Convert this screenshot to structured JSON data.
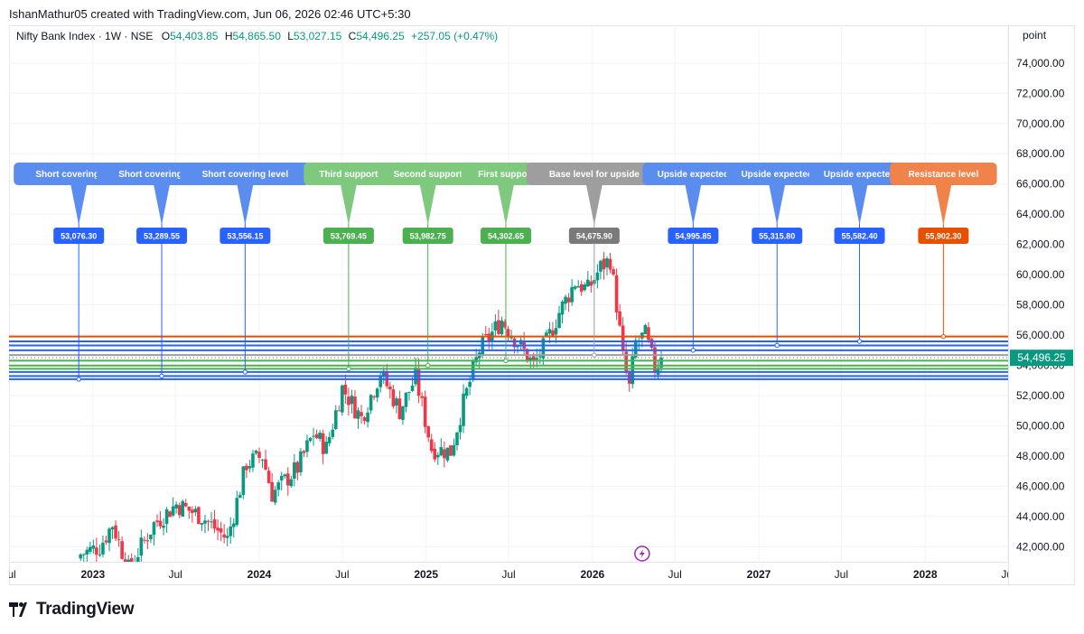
{
  "header": {
    "created_by": "IshanMathur05 created with TradingView.com, Jun 06, 2026 02:46 UTC+5:30"
  },
  "symbol": {
    "title": "Nifty Bank Index · 1W · NSE",
    "o_label": "O",
    "o_value": "54,403.85",
    "h_label": "H",
    "h_value": "54,865.50",
    "l_label": "L",
    "l_value": "53,027.15",
    "c_label": "C",
    "c_value": "54,496.25",
    "change": "+257.05 (+0.47%)"
  },
  "scale_button": "point",
  "last_price_label": "54,496.25",
  "footer": {
    "logo_text": "TradingView"
  },
  "colors": {
    "up": "#089981",
    "down": "#f23645",
    "blue": "#2962ff",
    "green": "#4caf50",
    "green_label": "#7fc97f",
    "gray": "#9e9e9e",
    "orange": "#e65100",
    "orange_label": "#f0834a",
    "blue_label": "#5b8def",
    "grid": "#f0f3fa"
  },
  "icons": {
    "replay": "lightning-icon",
    "logo": "tradingview-logo-icon"
  },
  "chart_data": {
    "type": "candlestick",
    "y_range": [
      41000,
      76500
    ],
    "y_ticks": [
      "42,000.00",
      "44,000.00",
      "46,000.00",
      "48,000.00",
      "50,000.00",
      "52,000.00",
      "54,000.00",
      "56,000.00",
      "58,000.00",
      "60,000.00",
      "62,000.00",
      "64,000.00",
      "66,000.00",
      "68,000.00",
      "70,000.00",
      "72,000.00",
      "74,000.00"
    ],
    "y_tick_values": [
      42000,
      44000,
      46000,
      48000,
      50000,
      52000,
      54000,
      56000,
      58000,
      60000,
      62000,
      64000,
      66000,
      68000,
      70000,
      72000,
      74000
    ],
    "x_range": [
      "2022-07-01",
      "2028-07-01"
    ],
    "x_ticks": [
      {
        "date": "2022-07-01",
        "label": "Jul",
        "bold": false
      },
      {
        "date": "2023-01-01",
        "label": "2023",
        "bold": true
      },
      {
        "date": "2023-07-01",
        "label": "Jul",
        "bold": false
      },
      {
        "date": "2024-01-01",
        "label": "2024",
        "bold": true
      },
      {
        "date": "2024-07-01",
        "label": "Jul",
        "bold": false
      },
      {
        "date": "2025-01-01",
        "label": "2025",
        "bold": true
      },
      {
        "date": "2025-07-01",
        "label": "Jul",
        "bold": false
      },
      {
        "date": "2026-01-01",
        "label": "2026",
        "bold": true
      },
      {
        "date": "2026-07-01",
        "label": "Jul",
        "bold": false
      },
      {
        "date": "2027-01-01",
        "label": "2027",
        "bold": true
      },
      {
        "date": "2027-07-01",
        "label": "Jul",
        "bold": false
      },
      {
        "date": "2028-01-01",
        "label": "2028",
        "bold": true
      },
      {
        "date": "2028-07-01",
        "label": "Jul",
        "bold": false
      }
    ],
    "trend_anchors": [
      {
        "date": "2022-12-05",
        "close": 41500
      },
      {
        "date": "2023-01-16",
        "close": 42000
      },
      {
        "date": "2023-02-13",
        "close": 43500
      },
      {
        "date": "2023-03-20",
        "close": 40500
      },
      {
        "date": "2023-05-15",
        "close": 43500
      },
      {
        "date": "2023-07-03",
        "close": 44800
      },
      {
        "date": "2023-08-28",
        "close": 44000
      },
      {
        "date": "2023-10-23",
        "close": 42500
      },
      {
        "date": "2023-12-04",
        "close": 47500
      },
      {
        "date": "2024-01-08",
        "close": 48000
      },
      {
        "date": "2024-01-29",
        "close": 45500
      },
      {
        "date": "2024-03-25",
        "close": 47200
      },
      {
        "date": "2024-04-29",
        "close": 49500
      },
      {
        "date": "2024-05-27",
        "close": 48500
      },
      {
        "date": "2024-07-01",
        "close": 52500
      },
      {
        "date": "2024-08-12",
        "close": 50500
      },
      {
        "date": "2024-09-23",
        "close": 53500
      },
      {
        "date": "2024-11-04",
        "close": 51000
      },
      {
        "date": "2024-12-09",
        "close": 53200
      },
      {
        "date": "2025-01-13",
        "close": 48500
      },
      {
        "date": "2025-02-24",
        "close": 48300
      },
      {
        "date": "2025-03-24",
        "close": 51500
      },
      {
        "date": "2025-04-28",
        "close": 55000
      },
      {
        "date": "2025-06-16",
        "close": 57000
      },
      {
        "date": "2025-07-28",
        "close": 55200
      },
      {
        "date": "2025-08-25",
        "close": 54000
      },
      {
        "date": "2025-09-22",
        "close": 55500
      },
      {
        "date": "2025-10-20",
        "close": 57500
      },
      {
        "date": "2025-11-24",
        "close": 59500
      },
      {
        "date": "2025-12-22",
        "close": 59000
      },
      {
        "date": "2026-01-19",
        "close": 60500
      },
      {
        "date": "2026-02-09",
        "close": 61000
      },
      {
        "date": "2026-02-23",
        "close": 58000
      },
      {
        "date": "2026-03-09",
        "close": 54500
      },
      {
        "date": "2026-03-23",
        "close": 52500
      },
      {
        "date": "2026-04-06",
        "close": 55500
      },
      {
        "date": "2026-04-27",
        "close": 56000
      },
      {
        "date": "2026-05-18",
        "close": 53800
      },
      {
        "date": "2026-06-01",
        "close": 54496
      }
    ],
    "levels": [
      {
        "label": "Short covering level",
        "value": "53,076.30",
        "price": 53076.3,
        "kind": "blue",
        "anchor": "2022-12-01"
      },
      {
        "label": "Short covering level",
        "value": "53,289.55",
        "price": 53289.55,
        "kind": "blue",
        "anchor": "2023-06-01"
      },
      {
        "label": "Short covering level",
        "value": "53,556.15",
        "price": 53556.15,
        "kind": "blue",
        "anchor": "2023-12-01"
      },
      {
        "label": "Third support",
        "value": "53,769.45",
        "price": 53769.45,
        "kind": "green",
        "anchor": "2024-07-15"
      },
      {
        "label": "Second support",
        "value": "53,982.75",
        "price": 53982.75,
        "kind": "green",
        "anchor": "2025-01-05"
      },
      {
        "label": "First support",
        "value": "54,302.65",
        "price": 54302.65,
        "kind": "green",
        "anchor": "2025-06-25"
      },
      {
        "label": "Base level for upside",
        "value": "54,675.90",
        "price": 54675.9,
        "kind": "gray",
        "anchor": "2026-01-05"
      },
      {
        "label": "Upside expected",
        "value": "54,995.85",
        "price": 54995.85,
        "kind": "blue",
        "anchor": "2026-08-10"
      },
      {
        "label": "Upside expected",
        "value": "55,315.80",
        "price": 55315.8,
        "kind": "blue",
        "anchor": "2027-02-10"
      },
      {
        "label": "Upside expected",
        "value": "55,582.40",
        "price": 55582.4,
        "kind": "blue",
        "anchor": "2027-08-10"
      },
      {
        "label": "Resistance level",
        "value": "55,902.30",
        "price": 55902.3,
        "kind": "orange",
        "anchor": "2028-02-10"
      }
    ]
  }
}
